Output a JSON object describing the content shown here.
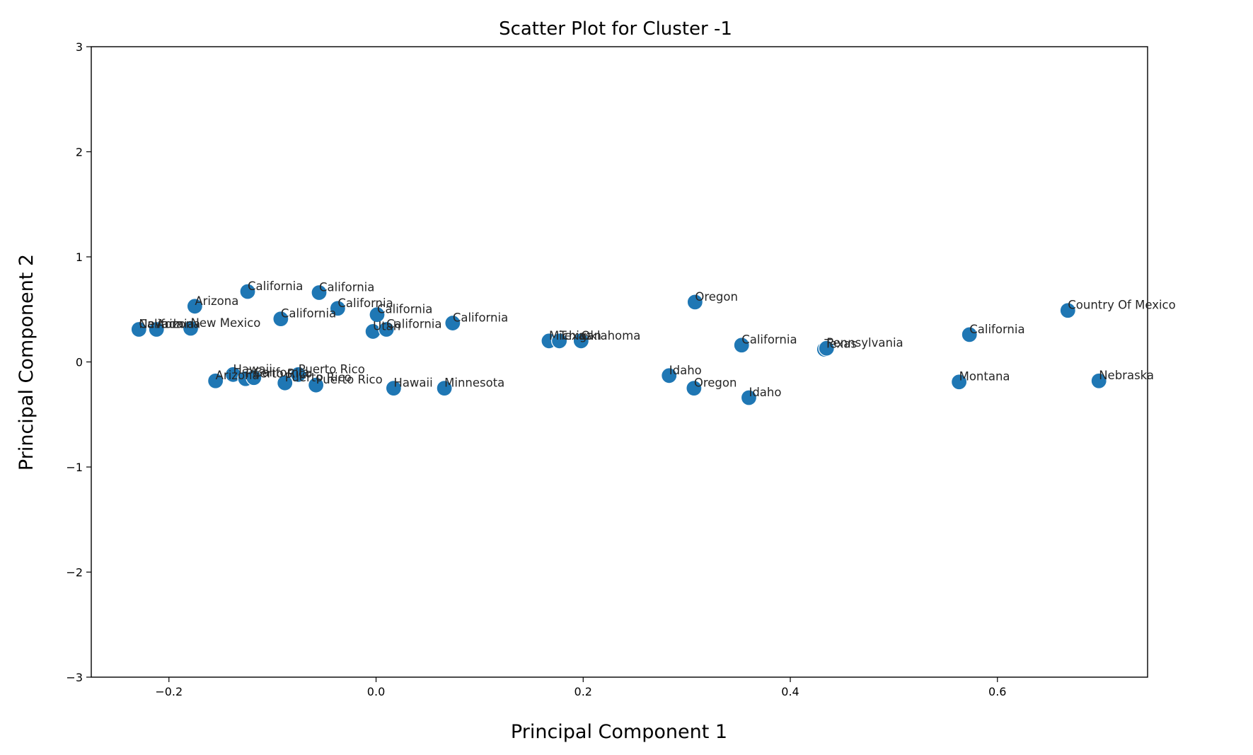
{
  "chart_data": {
    "type": "scatter",
    "title": "Scatter Plot for Cluster -1",
    "xlabel": "Principal Component 1",
    "ylabel": "Principal Component 2",
    "xlim": [
      -0.275,
      0.745
    ],
    "ylim": [
      -3,
      3
    ],
    "xticks": [
      -0.2,
      0.0,
      0.2,
      0.4,
      0.6
    ],
    "xtick_labels": [
      "−0.2",
      "0.0",
      "0.2",
      "0.4",
      "0.6"
    ],
    "yticks": [
      -3,
      -2,
      -1,
      0,
      1,
      2,
      3
    ],
    "ytick_labels": [
      "−3",
      "−2",
      "−1",
      "0",
      "1",
      "2",
      "3"
    ],
    "grid": false,
    "marker_color": "#1f77b4",
    "points": [
      {
        "x": -0.229,
        "y": 0.31,
        "label": "California"
      },
      {
        "x": -0.229,
        "y": 0.31,
        "label": "Nevada"
      },
      {
        "x": -0.212,
        "y": 0.31,
        "label": "Arizona"
      },
      {
        "x": -0.179,
        "y": 0.32,
        "label": "New Mexico"
      },
      {
        "x": -0.175,
        "y": 0.53,
        "label": "Arizona"
      },
      {
        "x": -0.124,
        "y": 0.67,
        "label": "California"
      },
      {
        "x": -0.055,
        "y": 0.66,
        "label": "California"
      },
      {
        "x": -0.092,
        "y": 0.41,
        "label": "California"
      },
      {
        "x": -0.037,
        "y": 0.51,
        "label": "California"
      },
      {
        "x": 0.001,
        "y": 0.45,
        "label": "California"
      },
      {
        "x": -0.003,
        "y": 0.29,
        "label": "Utah"
      },
      {
        "x": 0.01,
        "y": 0.31,
        "label": "California"
      },
      {
        "x": 0.074,
        "y": 0.37,
        "label": "California"
      },
      {
        "x": 0.167,
        "y": 0.2,
        "label": "Michigan"
      },
      {
        "x": 0.177,
        "y": 0.2,
        "label": "Texas"
      },
      {
        "x": 0.198,
        "y": 0.2,
        "label": "Oklahoma"
      },
      {
        "x": 0.308,
        "y": 0.57,
        "label": "Oregon"
      },
      {
        "x": 0.353,
        "y": 0.16,
        "label": "California"
      },
      {
        "x": 0.433,
        "y": 0.12,
        "label": "Texas"
      },
      {
        "x": 0.435,
        "y": 0.13,
        "label": "Pennsylvania"
      },
      {
        "x": 0.573,
        "y": 0.26,
        "label": "California"
      },
      {
        "x": 0.668,
        "y": 0.49,
        "label": "Country Of Mexico"
      },
      {
        "x": -0.155,
        "y": -0.18,
        "label": "Arizona"
      },
      {
        "x": -0.138,
        "y": -0.12,
        "label": "Hawaii"
      },
      {
        "x": -0.126,
        "y": -0.16,
        "label": "Puerto Rico"
      },
      {
        "x": -0.118,
        "y": -0.15,
        "label": "California"
      },
      {
        "x": -0.075,
        "y": -0.12,
        "label": "Puerto Rico"
      },
      {
        "x": -0.088,
        "y": -0.2,
        "label": "Puerto Rico"
      },
      {
        "x": -0.058,
        "y": -0.22,
        "label": "Puerto Rico"
      },
      {
        "x": 0.017,
        "y": -0.25,
        "label": "Hawaii"
      },
      {
        "x": 0.066,
        "y": -0.25,
        "label": "Minnesota"
      },
      {
        "x": 0.283,
        "y": -0.13,
        "label": "Idaho"
      },
      {
        "x": 0.307,
        "y": -0.25,
        "label": "Oregon"
      },
      {
        "x": 0.36,
        "y": -0.34,
        "label": "Idaho"
      },
      {
        "x": 0.563,
        "y": -0.19,
        "label": "Montana"
      },
      {
        "x": 0.698,
        "y": -0.18,
        "label": "Nebraska"
      }
    ]
  }
}
